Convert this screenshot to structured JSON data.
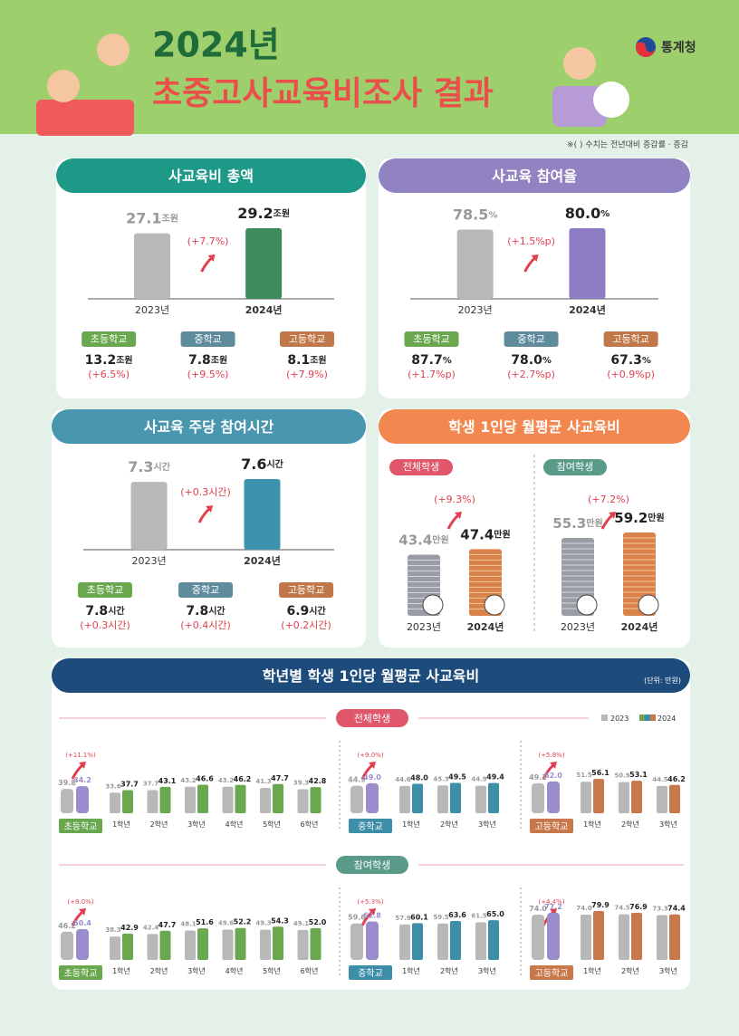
{
  "header": {
    "year_title": "2024년",
    "title": "초중고사교육비조사 결과",
    "agency": "통계청",
    "note": "※(     ) 수치는 전년대비 증감률 · 증감"
  },
  "total": {
    "title": "사교육비 총액",
    "unit": "조원",
    "years": [
      "2023년",
      "2024년"
    ],
    "values": [
      27.1,
      29.2
    ],
    "change": "(+7.7%)",
    "levels": [
      "초등학교",
      "중학교",
      "고등학교"
    ],
    "level_values": [
      13.2,
      7.8,
      8.1
    ],
    "level_changes": [
      "(+6.5%)",
      "(+9.5%)",
      "(+7.9%)"
    ]
  },
  "participation": {
    "title": "사교육 참여율",
    "unit": "%",
    "years": [
      "2023년",
      "2024년"
    ],
    "values": [
      78.5,
      {
        "value": 80,
        "label": "80.0"
      }
    ],
    "change": "(+1.5%p)",
    "levels": [
      "초등학교",
      "중학교",
      "고등학교"
    ],
    "level_values": [
      87.7,
      {
        "value": 78,
        "label": "78.0"
      },
      67.3
    ],
    "level_changes": [
      "(+1.7%p)",
      "(+2.7%p)",
      "(+0.9%p)"
    ]
  },
  "hours": {
    "title": "사교육 주당 참여시간",
    "unit": "시간",
    "years": [
      "2023년",
      "2024년"
    ],
    "values": [
      7.3,
      7.6
    ],
    "change": "(+0.3시간)",
    "levels": [
      "초등학교",
      "중학교",
      "고등학교"
    ],
    "level_values": [
      7.8,
      7.8,
      6.9
    ],
    "level_changes": [
      "(+0.3시간)",
      "(+0.4시간)",
      "(+0.2시간)"
    ]
  },
  "per_student": {
    "title": "학생 1인당 월평균 사교육비",
    "unit": "만원",
    "groups": [
      {
        "name": "전체학생",
        "change": "(+9.3%)",
        "years": [
          "2023년",
          "2024년"
        ],
        "values": [
          43.4,
          47.4
        ]
      },
      {
        "name": "참여학생",
        "change": "(+7.2%)",
        "years": [
          "2023년",
          "2024년"
        ],
        "values": [
          55.3,
          59.2
        ]
      }
    ]
  },
  "by_grade": {
    "title": "학년별 학생 1인당 월평균 사교육비",
    "unit_note": "(단위: 만원)",
    "legend": [
      "2023",
      "2024"
    ],
    "sections": [
      {
        "name": "전체학생",
        "levels": [
          {
            "name": "초등학교",
            "change": "(+11.1%)",
            "total": [
              39.8,
              44.2
            ],
            "grades": [
              "1학년",
              "2학년",
              "3학년",
              "4학년",
              "5학년",
              "6학년"
            ],
            "values_2023": [
              33.6,
              37.7,
              43.2,
              43.2,
              41.3,
              39.3
            ],
            "values_2024": [
              37.7,
              43.1,
              46.6,
              46.2,
              47.7,
              42.8
            ]
          },
          {
            "name": "중학교",
            "change": "(+9.0%)",
            "total": [
              44.9,
              {
                "value": 49,
                "label": "49.0"
              }
            ],
            "grades": [
              "1학년",
              "2학년",
              "3학년"
            ],
            "values_2023": [
              44.6,
              45.3,
              44.9
            ],
            "values_2024": [
              {
                "value": 48,
                "label": "48.0"
              },
              49.5,
              49.4
            ]
          },
          {
            "name": "고등학교",
            "change": "(+5.8%)",
            "total": [
              49.1,
              {
                "value": 52,
                "label": "52.0"
              }
            ],
            "grades": [
              "1학년",
              "2학년",
              "3학년"
            ],
            "values_2023": [
              51.5,
              50.9,
              44.5
            ],
            "values_2024": [
              56.1,
              53.1,
              46.2
            ]
          }
        ]
      },
      {
        "name": "참여학생",
        "levels": [
          {
            "name": "초등학교",
            "change": "(+9.0%)",
            "total": [
              46.2,
              50.4
            ],
            "grades": [
              "1학년",
              "2학년",
              "3학년",
              "4학년",
              "5학년",
              "6학년"
            ],
            "values_2023": [
              38.3,
              42.4,
              48.1,
              49.6,
              49.3,
              49.1
            ],
            "values_2024": [
              42.9,
              47.7,
              51.6,
              52.2,
              54.3,
              {
                "value": 52,
                "label": "52.0"
              }
            ]
          },
          {
            "name": "중학교",
            "change": "(+5.3%)",
            "total": [
              59.6,
              62.8
            ],
            "grades": [
              "1학년",
              "2학년",
              "3학년"
            ],
            "values_2023": [
              57.9,
              59.5,
              61.5
            ],
            "values_2024": [
              60.1,
              63.6,
              {
                "value": 65,
                "label": "65.0"
              }
            ]
          },
          {
            "name": "고등학교",
            "change": "(+4.4%)",
            "total": [
              {
                "value": 74,
                "label": "74.0"
              },
              77.2
            ],
            "grades": [
              "1학년",
              "2학년",
              "3학년"
            ],
            "values_2023": [
              {
                "value": 74,
                "label": "74.0"
              },
              74.5,
              73.3
            ],
            "values_2024": [
              79.9,
              76.9,
              74.4
            ]
          }
        ]
      }
    ]
  }
}
